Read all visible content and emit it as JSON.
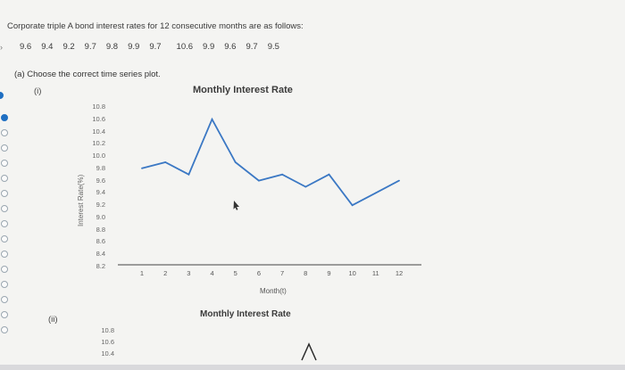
{
  "question": {
    "text": "Corporate triple A bond interest rates for 12 consecutive months are as follows:",
    "values": [
      "9.6",
      "9.4",
      "9.2",
      "9.7",
      "9.8",
      "9.9",
      "9.7",
      "10.6",
      "9.9",
      "9.6",
      "9.7",
      "9.5"
    ]
  },
  "part_a": {
    "prompt": "(a) Choose the correct time series plot."
  },
  "options": [
    {
      "label": "(i)",
      "title": "Monthly Interest Rate",
      "ylabel": "Interest Rate(%)",
      "xlabel": "Month(t)",
      "yticks": [
        "10.8",
        "10.6",
        "10.4",
        "10.2",
        "10.0",
        "9.8",
        "9.6",
        "9.4",
        "9.2",
        "9.0",
        "8.8",
        "8.6",
        "8.4",
        "8.2"
      ],
      "xticks": [
        "1",
        "2",
        "3",
        "4",
        "5",
        "6",
        "7",
        "8",
        "9",
        "10",
        "11",
        "12"
      ]
    },
    {
      "label": "(ii)",
      "title": "Monthly Interest Rate",
      "yticks": [
        "10.8",
        "10.6",
        "10.4"
      ]
    }
  ],
  "chart_data": {
    "type": "line",
    "title": "Monthly Interest Rate",
    "xlabel": "Month(t)",
    "ylabel": "Interest Rate(%)",
    "x": [
      1,
      2,
      3,
      4,
      5,
      6,
      7,
      8,
      9,
      10,
      11,
      12
    ],
    "y": [
      9.8,
      9.9,
      9.7,
      10.6,
      9.9,
      9.6,
      9.7,
      9.5,
      9.7,
      9.2,
      9.4,
      9.6
    ],
    "ylim": [
      8.2,
      10.8
    ],
    "xlim": [
      1,
      12
    ],
    "grid": false,
    "colors": {
      "line": "#3b78c4"
    }
  },
  "radio_states": [
    {
      "state": "partial"
    },
    {
      "state": "selected"
    },
    {
      "state": "unselected"
    },
    {
      "state": "unselected"
    },
    {
      "state": "unselected"
    },
    {
      "state": "unselected"
    },
    {
      "state": "unselected"
    },
    {
      "state": "unselected"
    },
    {
      "state": "unselected"
    },
    {
      "state": "unselected"
    },
    {
      "state": "unselected"
    },
    {
      "state": "unselected"
    },
    {
      "state": "unselected"
    },
    {
      "state": "unselected"
    },
    {
      "state": "unselected"
    },
    {
      "state": "unselected"
    }
  ],
  "colors": {
    "accent": "#1f6fc2",
    "series_line": "#3b78c4"
  }
}
